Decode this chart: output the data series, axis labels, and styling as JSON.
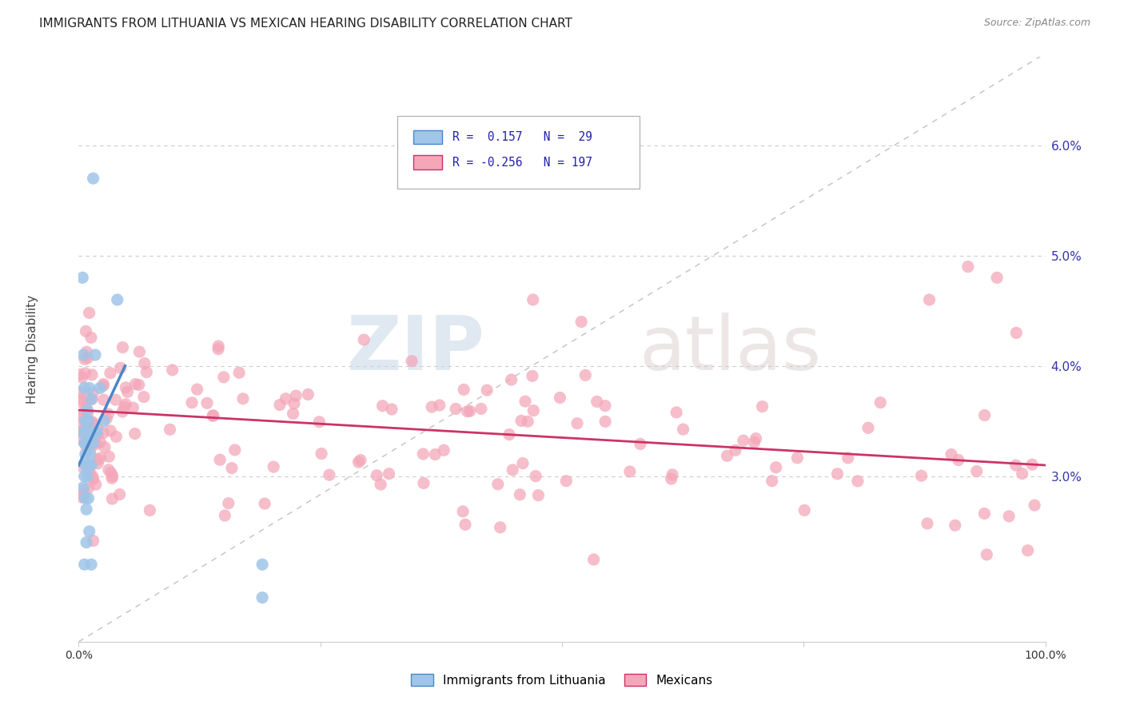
{
  "title": "IMMIGRANTS FROM LITHUANIA VS MEXICAN HEARING DISABILITY CORRELATION CHART",
  "source": "Source: ZipAtlas.com",
  "ylabel": "Hearing Disability",
  "xlim": [
    0.0,
    1.0
  ],
  "ylim": [
    0.015,
    0.068
  ],
  "yticks": [
    0.03,
    0.04,
    0.05,
    0.06
  ],
  "ytick_labels": [
    "3.0%",
    "4.0%",
    "5.0%",
    "6.0%"
  ],
  "xticks": [
    0.0,
    0.25,
    0.5,
    0.75,
    1.0
  ],
  "xtick_labels": [
    "0.0%",
    "",
    "",
    "",
    "100.0%"
  ],
  "legend_blue_r": "0.157",
  "legend_blue_n": "29",
  "legend_pink_r": "-0.256",
  "legend_pink_n": "197",
  "blue_color": "#9fc5e8",
  "pink_color": "#f4a7b9",
  "blue_line_color": "#4a86c8",
  "pink_line_color": "#cc3366",
  "dashed_line_color": "#bbbbbb",
  "background_color": "#ffffff",
  "watermark_zip": "ZIP",
  "watermark_atlas": "atlas"
}
